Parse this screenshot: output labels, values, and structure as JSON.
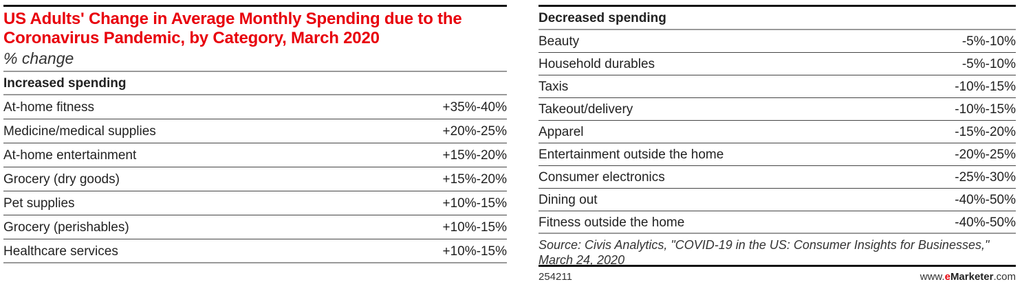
{
  "chart_data": {
    "type": "table",
    "title": "US Adults' Change in Average Monthly Spending due to the Coronavirus Pandemic, by Category, March 2020",
    "subtitle": "% change",
    "increased": {
      "heading": "Increased spending",
      "rows": [
        {
          "category": "At-home fitness",
          "value": "+35%-40%"
        },
        {
          "category": "Medicine/medical supplies",
          "value": "+20%-25%"
        },
        {
          "category": "At-home entertainment",
          "value": "+15%-20%"
        },
        {
          "category": "Grocery (dry goods)",
          "value": "+15%-20%"
        },
        {
          "category": "Pet supplies",
          "value": "+10%-15%"
        },
        {
          "category": "Grocery (perishables)",
          "value": "+10%-15%"
        },
        {
          "category": "Healthcare services",
          "value": "+10%-15%"
        }
      ]
    },
    "decreased": {
      "heading": "Decreased spending",
      "rows": [
        {
          "category": "Beauty",
          "value": "-5%-10%"
        },
        {
          "category": "Household durables",
          "value": "-5%-10%"
        },
        {
          "category": "Taxis",
          "value": "-10%-15%"
        },
        {
          "category": "Takeout/delivery",
          "value": "-10%-15%"
        },
        {
          "category": "Apparel",
          "value": "-15%-20%"
        },
        {
          "category": "Entertainment outside the home",
          "value": "-20%-25%"
        },
        {
          "category": "Consumer electronics",
          "value": "-25%-30%"
        },
        {
          "category": "Dining out",
          "value": "-40%-50%"
        },
        {
          "category": "Fitness outside the home",
          "value": "-40%-50%"
        }
      ]
    },
    "source": "Source: Civis Analytics, \"COVID-19 in the US: Consumer Insights for Businesses,\" March 24, 2020",
    "chart_id": "254211",
    "brand": {
      "prefix": "www.",
      "e": "e",
      "name": "Marketer",
      "suffix": ".com"
    },
    "colors": {
      "title": "#e8000b",
      "text": "#222222"
    }
  }
}
